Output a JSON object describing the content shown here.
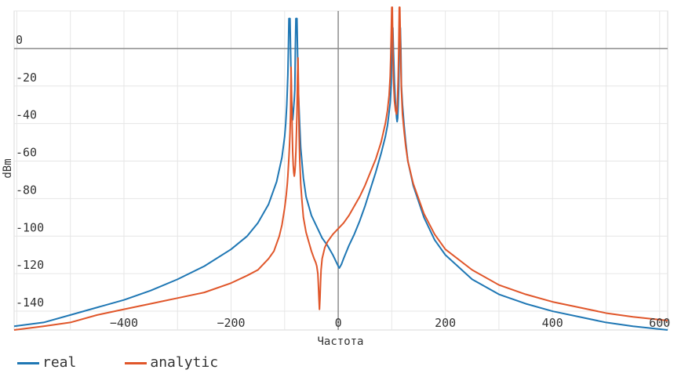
{
  "chart_data": {
    "type": "line",
    "title": "",
    "xlabel": "Частота",
    "ylabel": "dBm",
    "xlim": [
      -605,
      615
    ],
    "ylim": [
      -150,
      20
    ],
    "x_ticks": [
      -400,
      -200,
      0,
      200,
      400,
      600
    ],
    "x_tick_labels": [
      "−400",
      "−200",
      "0",
      "200",
      "400",
      "600"
    ],
    "y_ticks": [
      0,
      -20,
      -40,
      -60,
      -80,
      -100,
      -120,
      -140
    ],
    "y_tick_labels": [
      "0",
      "-20",
      "-40",
      "-60",
      "-80",
      "-100",
      "-120",
      "-140"
    ],
    "grid": true,
    "legend_position": "bottom-left",
    "series": [
      {
        "name": "real",
        "color": "#1f77b4",
        "x": [
          -605,
          -550,
          -500,
          -450,
          -400,
          -350,
          -300,
          -250,
          -200,
          -170,
          -150,
          -130,
          -115,
          -105,
          -100,
          -98,
          -97,
          -96,
          -95,
          -94,
          -93,
          -92,
          -91,
          -90,
          -89,
          -88,
          -87,
          -85,
          -84,
          -82,
          -81,
          -80,
          -79,
          -78,
          -77,
          -76,
          -75,
          -74,
          -72,
          -70,
          -65,
          -60,
          -50,
          -40,
          -30,
          -20,
          -10,
          0,
          2,
          4,
          6,
          10,
          20,
          30,
          40,
          50,
          60,
          70,
          80,
          88,
          92,
          95,
          97,
          98,
          99,
          100,
          101,
          102,
          103,
          105,
          107,
          109,
          110,
          111,
          112,
          113,
          114,
          115,
          116,
          117,
          118,
          120,
          123,
          126,
          130,
          140,
          160,
          180,
          200,
          250,
          300,
          350,
          400,
          450,
          500,
          550,
          615
        ],
        "y": [
          -148,
          -146,
          -142,
          -138,
          -134,
          -129,
          -123,
          -116,
          -107,
          -100,
          -93,
          -83,
          -71,
          -58,
          -47,
          -40,
          -35,
          -30,
          -22,
          -14,
          0,
          16,
          16,
          16,
          0,
          -15,
          -28,
          -38,
          -35,
          -27,
          -22,
          0,
          16,
          16,
          16,
          0,
          -16,
          -25,
          -40,
          -53,
          -69,
          -79,
          -89,
          -95,
          -101,
          -105,
          -110,
          -116,
          -117,
          -116,
          -115,
          -112,
          -105,
          -99,
          -92,
          -84,
          -75,
          -66,
          -56,
          -47,
          -41,
          -34,
          -29,
          -24,
          -19,
          0,
          11,
          11,
          0,
          -18,
          -30,
          -37,
          -39,
          -37,
          -30,
          -20,
          0,
          11,
          11,
          0,
          -20,
          -30,
          -41,
          -50,
          -60,
          -73,
          -90,
          -102,
          -110,
          -123,
          -131,
          -136,
          -140,
          -143,
          -146,
          -148,
          -150
        ]
      },
      {
        "name": "analytic",
        "color": "#e0562a",
        "x": [
          -605,
          -550,
          -500,
          -450,
          -400,
          -350,
          -300,
          -250,
          -200,
          -170,
          -150,
          -130,
          -120,
          -110,
          -105,
          -100,
          -97,
          -95,
          -94,
          -93,
          -92,
          -91,
          -90,
          -89,
          -88,
          -87,
          -86,
          -85,
          -84,
          -83,
          -82,
          -81,
          -80,
          -79,
          -78,
          -77,
          -76,
          -75,
          -74,
          -73,
          -72,
          -70,
          -68,
          -65,
          -60,
          -55,
          -50,
          -45,
          -42,
          -40,
          -38,
          -37,
          -36,
          -35,
          -34,
          -33,
          -32,
          -30,
          -25,
          -20,
          -15,
          -10,
          0,
          10,
          20,
          30,
          40,
          50,
          60,
          70,
          80,
          88,
          92,
          95,
          97,
          98,
          99,
          100,
          101,
          102,
          103,
          105,
          107,
          109,
          110,
          111,
          112,
          113,
          114,
          115,
          116,
          117,
          118,
          120,
          123,
          126,
          130,
          140,
          160,
          180,
          200,
          250,
          300,
          350,
          400,
          450,
          500,
          550,
          615
        ],
        "y": [
          -150,
          -148,
          -146,
          -142,
          -139,
          -136,
          -133,
          -130,
          -125,
          -121,
          -118,
          -112,
          -108,
          -100,
          -94,
          -85,
          -78,
          -72,
          -68,
          -63,
          -58,
          -52,
          -45,
          -35,
          -10,
          -25,
          -42,
          -55,
          -62,
          -66,
          -68,
          -66,
          -62,
          -55,
          -45,
          -35,
          -15,
          -5,
          -25,
          -45,
          -58,
          -72,
          -80,
          -90,
          -98,
          -103,
          -108,
          -112,
          -114,
          -116,
          -120,
          -126,
          -133,
          -139,
          -133,
          -125,
          -118,
          -112,
          -106,
          -103,
          -101,
          -99,
          -96,
          -93,
          -89,
          -84,
          -79,
          -73,
          -66,
          -59,
          -50,
          -40,
          -33,
          -25,
          -15,
          -5,
          8,
          22,
          22,
          0,
          -15,
          -28,
          -33,
          -35,
          -32,
          -25,
          -15,
          0,
          22,
          22,
          5,
          -10,
          -22,
          -35,
          -44,
          -52,
          -60,
          -72,
          -88,
          -99,
          -107,
          -118,
          -126,
          -131,
          -135,
          -138,
          -141,
          -143,
          -145
        ]
      }
    ]
  }
}
